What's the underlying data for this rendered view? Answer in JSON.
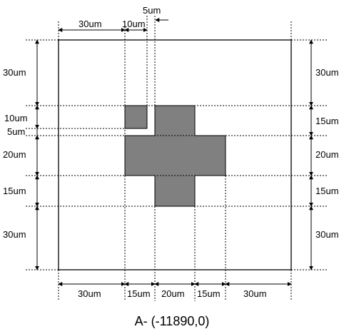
{
  "caption": "A- (-11890,0)",
  "shape_color": "#808080",
  "dimensions": {
    "top": [
      "30um",
      "10um",
      "5um"
    ],
    "bottom": [
      "30um",
      "15um",
      "20um",
      "15um",
      "30um"
    ],
    "left": [
      "30um",
      "10um",
      "5um",
      "20um",
      "15um",
      "30um"
    ],
    "right": [
      "30um",
      "15um",
      "20um",
      "15um",
      "30um"
    ]
  }
}
